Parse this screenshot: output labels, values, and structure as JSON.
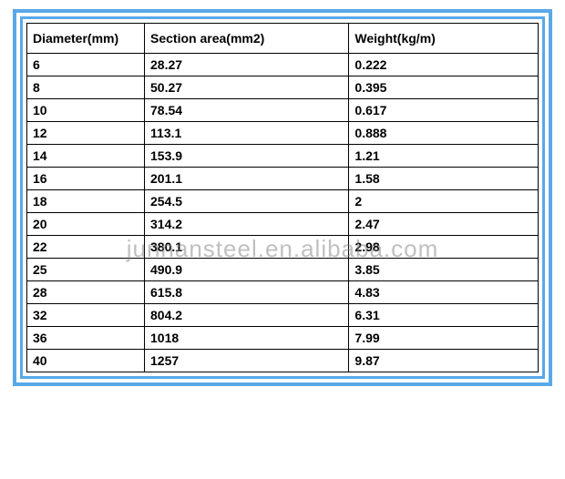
{
  "table": {
    "columns": [
      "Diameter(mm)",
      "Section area(mm2)",
      "Weight(kg/m)"
    ],
    "rows": [
      [
        "6",
        "28.27",
        "0.222"
      ],
      [
        "8",
        "50.27",
        "0.395"
      ],
      [
        "10",
        "78.54",
        "0.617"
      ],
      [
        "12",
        "113.1",
        "0.888"
      ],
      [
        "14",
        "153.9",
        "1.21"
      ],
      [
        "16",
        "201.1",
        "1.58"
      ],
      [
        "18",
        "254.5",
        "2"
      ],
      [
        "20",
        "314.2",
        "2.47"
      ],
      [
        "22",
        "380.1",
        "2.98"
      ],
      [
        "25",
        "490.9",
        "3.85"
      ],
      [
        "28",
        "615.8",
        "4.83"
      ],
      [
        "32",
        "804.2",
        "6.31"
      ],
      [
        "36",
        "1018",
        "7.99"
      ],
      [
        "40",
        "1257",
        "9.87"
      ]
    ],
    "border_color": "#5aa8e8",
    "cell_border_color": "#000000",
    "background_color": "#ffffff",
    "text_color": "#000000",
    "font_weight": "bold",
    "font_size": 14,
    "column_widths": [
      "23%",
      "40%",
      "37%"
    ]
  },
  "watermark": {
    "text": "junnansteel.en.alibaba.com",
    "color": "rgba(130,130,130,0.5)",
    "font_size": 26
  }
}
